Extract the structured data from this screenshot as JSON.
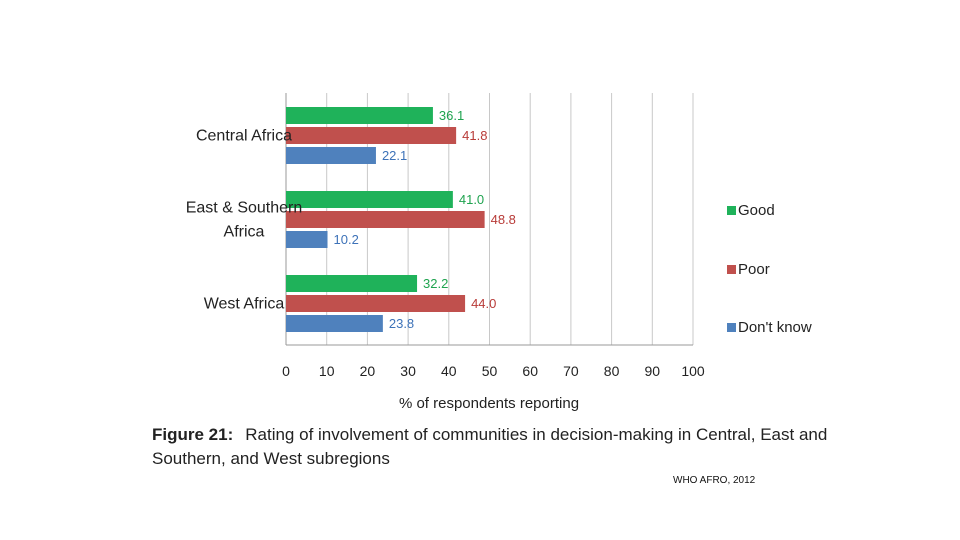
{
  "chart_data": {
    "type": "bar",
    "orientation": "horizontal",
    "categories": [
      "Central Africa",
      "East & Southern Africa",
      "West Africa"
    ],
    "category_label_lines": [
      [
        "Central Africa"
      ],
      [
        "East & Southern",
        "Africa"
      ],
      [
        "West Africa"
      ]
    ],
    "series": [
      {
        "name": "Good",
        "color": "#1fb25a",
        "values": [
          36.1,
          41.0,
          32.2
        ],
        "labels": [
          "36.1",
          "41.0",
          "32.2"
        ]
      },
      {
        "name": "Poor",
        "color": "#c0504d",
        "values": [
          41.8,
          48.8,
          44.0
        ],
        "labels": [
          "41.8",
          "48.8",
          "44.0"
        ]
      },
      {
        "name": "Don't know",
        "color": "#4f81bd",
        "values": [
          22.1,
          10.2,
          23.8
        ],
        "labels": [
          "22.1",
          "10.2",
          "23.8"
        ]
      }
    ],
    "label_colors": {
      "Good": "#1fa34f",
      "Poor": "#b83b38",
      "Don't know": "#3d72b8"
    },
    "xlabel": "% of respondents reporting",
    "xlim": [
      0,
      100
    ],
    "xticks": [
      0,
      10,
      20,
      30,
      40,
      50,
      60,
      70,
      80,
      90,
      100
    ],
    "grid": true,
    "legend": "right"
  },
  "caption": {
    "figure_label": "Figure 21:",
    "text": "Rating of involvement of communities in decision-making in Central, East and Southern, and West subregions"
  },
  "source": "WHO AFRO, 2012"
}
